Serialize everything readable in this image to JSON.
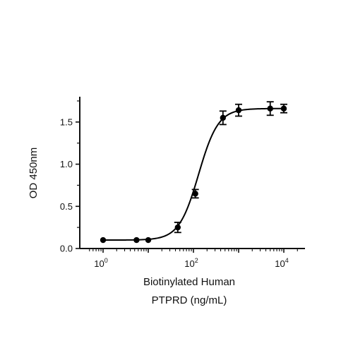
{
  "chart_data": {
    "type": "scatter",
    "xscale": "log",
    "xlim": [
      0.5,
      20000
    ],
    "ylim": [
      0,
      1.8
    ],
    "xlabel_lines": [
      "Biotinylated Human",
      "PTPRD (ng/mL)"
    ],
    "ylabel": "OD 450nm",
    "x_ticks": [
      {
        "value": 1,
        "base": "10",
        "exp": "0"
      },
      {
        "value": 100,
        "base": "10",
        "exp": "2"
      },
      {
        "value": 10000,
        "base": "10",
        "exp": "4"
      }
    ],
    "y_ticks": [
      "0.0",
      "0.5",
      "1.0",
      "1.5"
    ],
    "grid": false,
    "series": [
      {
        "points": [
          {
            "x": 1,
            "y": 0.1,
            "err": 0.0
          },
          {
            "x": 5.5,
            "y": 0.1,
            "err": 0.0
          },
          {
            "x": 10,
            "y": 0.1,
            "err": 0.0
          },
          {
            "x": 45,
            "y": 0.25,
            "err": 0.06
          },
          {
            "x": 110,
            "y": 0.65,
            "err": 0.05
          },
          {
            "x": 450,
            "y": 1.55,
            "err": 0.08
          },
          {
            "x": 1000,
            "y": 1.64,
            "err": 0.07
          },
          {
            "x": 5000,
            "y": 1.66,
            "err": 0.08
          },
          {
            "x": 10000,
            "y": 1.66,
            "err": 0.05
          }
        ],
        "fit": {
          "model": "4PL",
          "bottom": 0.1,
          "top": 1.66,
          "ec50": 130,
          "hill": 2.0
        },
        "color": "#000000"
      }
    ]
  }
}
